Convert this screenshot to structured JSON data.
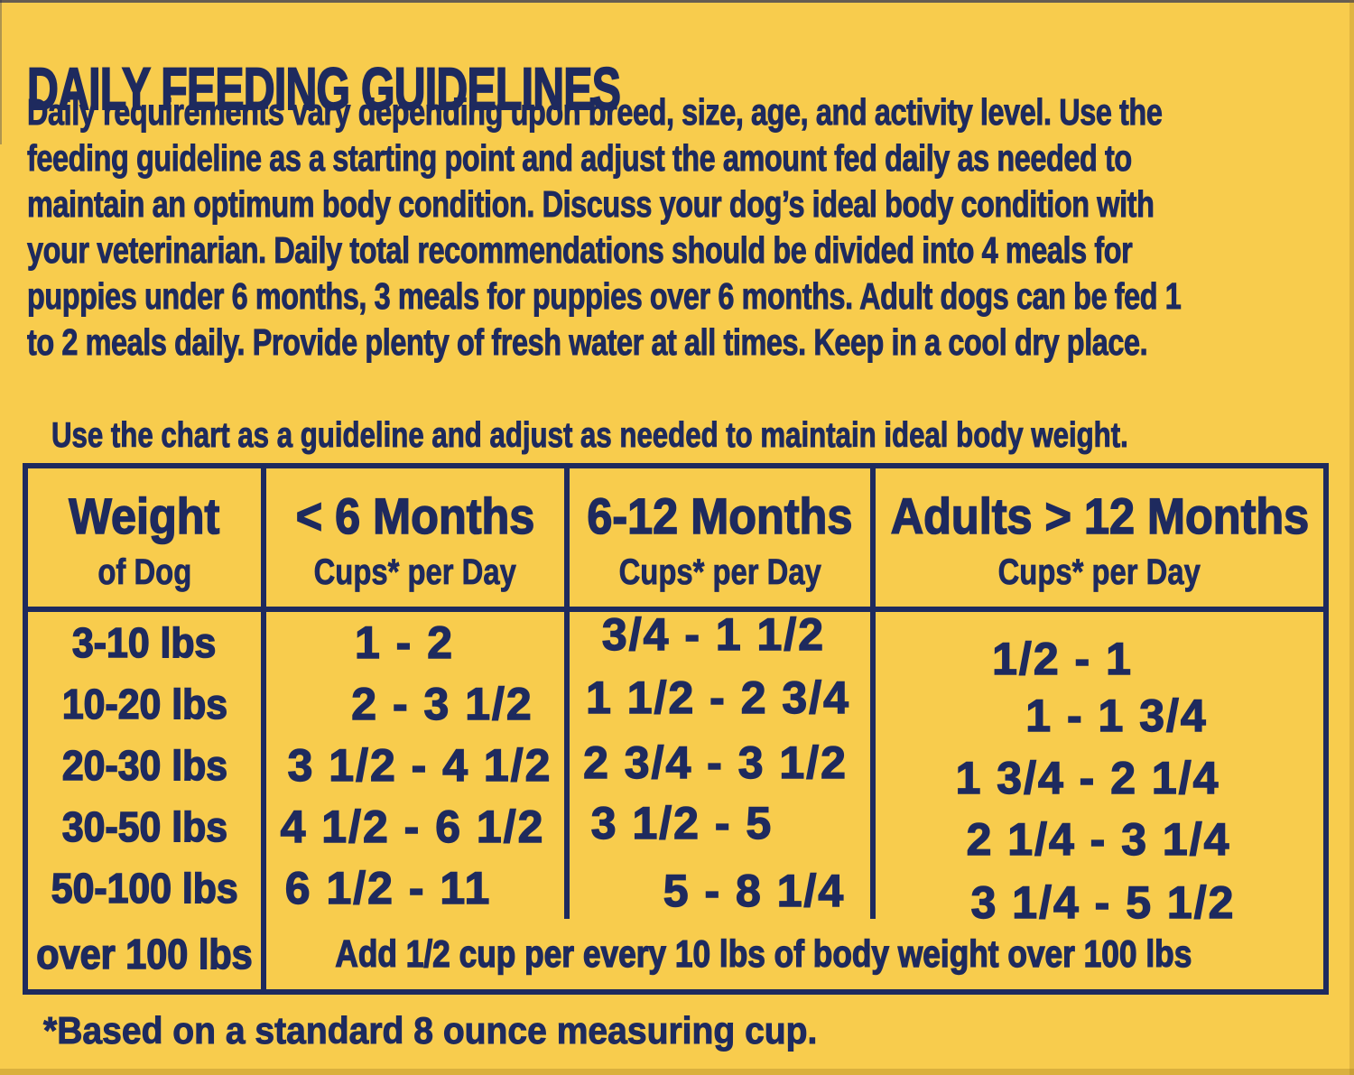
{
  "title": "DAILY FEEDING GUIDELINES",
  "intro": {
    "lines": [
      "Daily requirements vary depending upon breed, size, age, and activity level. Use the",
      "feeding guideline as a starting point and adjust the amount fed daily as needed to",
      "maintain an optimum body condition. Discuss your dog’s ideal body condition with",
      "your veterinarian. Daily total recommendations should be divided into 4 meals for",
      "puppies under 6 months, 3 meals for puppies over 6 months. Adult dogs can be fed 1",
      "to 2 meals daily. Provide plenty of fresh water at all times. Keep in a cool dry place."
    ]
  },
  "chart_note": "Use the chart as a guideline and adjust as needed to maintain ideal body weight.",
  "table": {
    "columns": [
      {
        "label": "Weight",
        "sublabel": "of Dog"
      },
      {
        "label": "< 6 Months",
        "sublabel": "Cups* per Day"
      },
      {
        "label": "6-12 Months",
        "sublabel": "Cups* per Day"
      },
      {
        "label": "Adults > 12 Months",
        "sublabel": "Cups* per Day"
      }
    ],
    "rows": [
      {
        "weight": "3-10 lbs",
        "under6": "1 - 2",
        "m6to12": "3/4 - 1 1/2",
        "adult": "1/2 - 1"
      },
      {
        "weight": "10-20 lbs",
        "under6": "2 - 3 1/2",
        "m6to12": "1 1/2 - 2 3/4",
        "adult": "1 - 1 3/4"
      },
      {
        "weight": "20-30 lbs",
        "under6": "3 1/2 - 4 1/2",
        "m6to12": "2 3/4 - 3 1/2",
        "adult": "1 3/4 - 2 1/4"
      },
      {
        "weight": "30-50 lbs",
        "under6": "4 1/2 - 6 1/2",
        "m6to12": "3 1/2 - 5",
        "adult": "2 1/4 - 3 1/4"
      },
      {
        "weight": "50-100 lbs",
        "under6": "6 1/2 - 11",
        "m6to12": "5 - 8 1/4",
        "adult": "3 1/4 - 5 1/2"
      }
    ],
    "footer_row": {
      "weight": "over 100 lbs",
      "note": "Add 1/2 cup per every 10 lbs of body weight over 100 lbs"
    }
  },
  "footnote": "*Based on a standard 8 ounce measuring cup.",
  "colors": {
    "background": "#F8CC4D",
    "ink": "#1E2A5E"
  }
}
